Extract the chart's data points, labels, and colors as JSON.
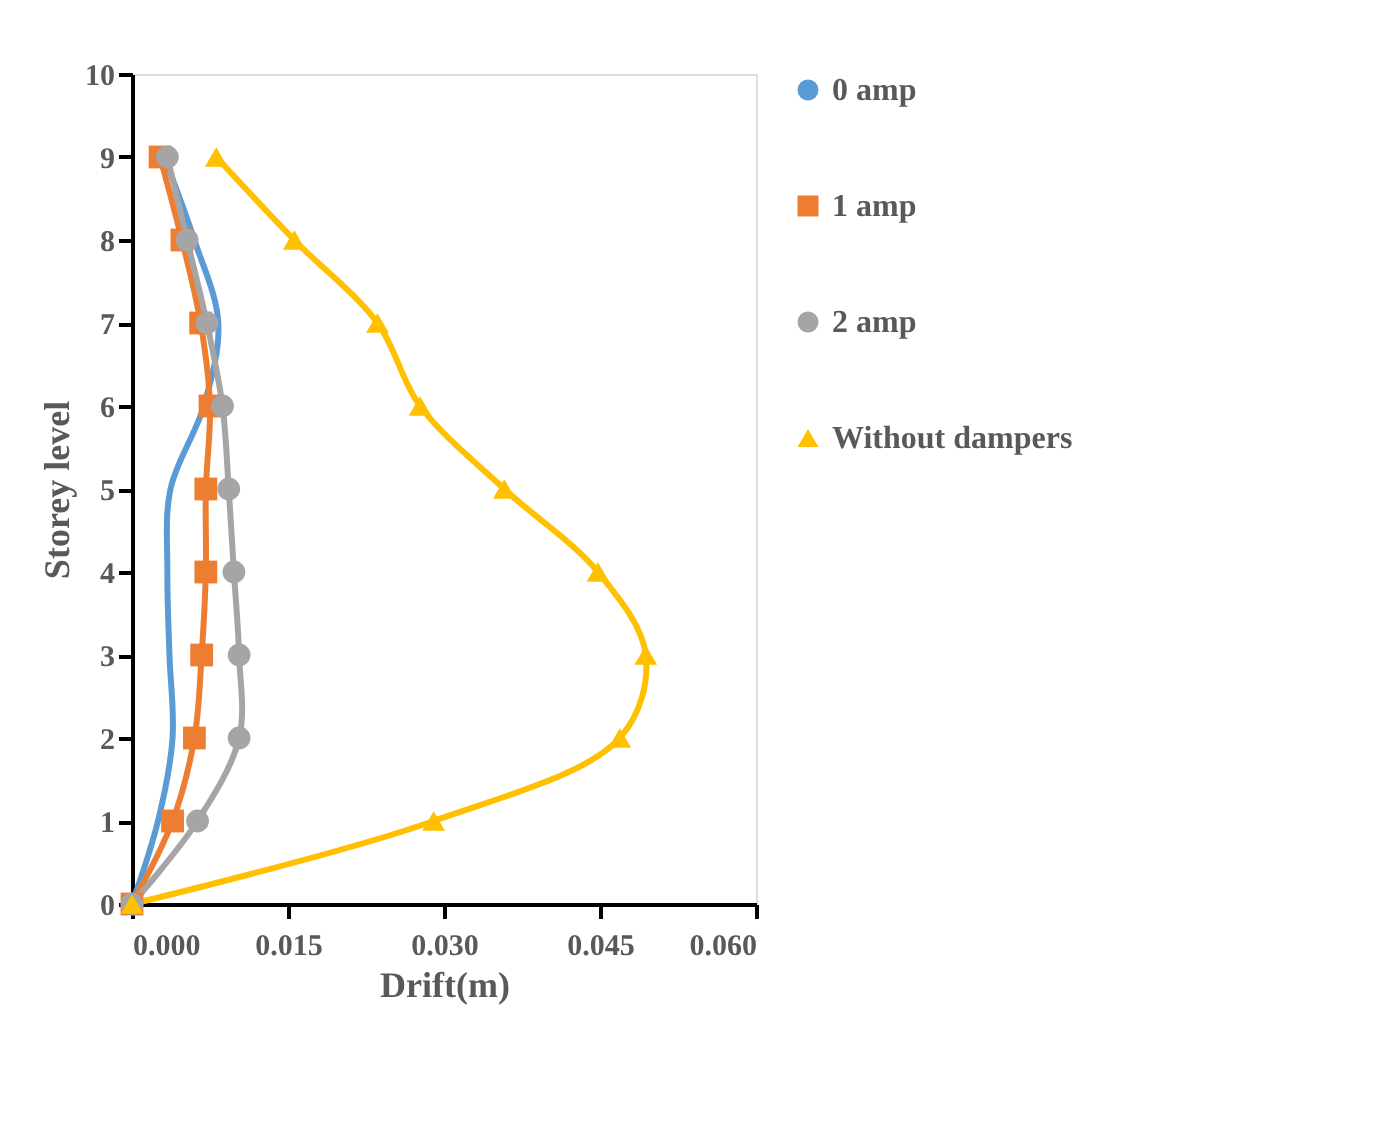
{
  "chart_data": {
    "type": "line",
    "xlabel": "Drift(m)",
    "ylabel": "Storey level",
    "xlim": [
      0,
      0.06
    ],
    "xticks": [
      {
        "value": 0,
        "label": "0.000"
      },
      {
        "value": 0.015,
        "label": "0.015"
      },
      {
        "value": 0.03,
        "label": "0.030"
      },
      {
        "value": 0.045,
        "label": "0.045"
      },
      {
        "value": 0.06,
        "label": "0.060"
      }
    ],
    "ylim": [
      0,
      10
    ],
    "yticks": [
      0,
      1,
      2,
      3,
      4,
      5,
      6,
      7,
      8,
      9,
      10
    ],
    "grid": false,
    "legend": "right",
    "series": [
      {
        "name": "0 amp",
        "color": "#5b9bd5",
        "marker": "none",
        "x": [
          0,
          0.0025,
          0.0039,
          0.0036,
          0.0034,
          0.0037,
          0.0069,
          0.0083,
          0.006,
          0.0031
        ],
        "values": [
          0,
          1,
          2,
          3,
          4,
          5,
          6,
          7,
          8,
          9
        ]
      },
      {
        "name": "1 amp",
        "color": "#ed7d31",
        "marker": "square",
        "x": [
          0,
          0.0039,
          0.006,
          0.0067,
          0.0071,
          0.0071,
          0.0075,
          0.0066,
          0.0048,
          0.0027
        ],
        "values": [
          0,
          1,
          2,
          3,
          4,
          5,
          6,
          7,
          8,
          9
        ]
      },
      {
        "name": "2 amp",
        "color": "#a5a5a5",
        "marker": "circle",
        "x": [
          0,
          0.0063,
          0.0103,
          0.0103,
          0.0098,
          0.0093,
          0.0087,
          0.0072,
          0.0053,
          0.0034
        ],
        "values": [
          0,
          1,
          2,
          3,
          4,
          5,
          6,
          7,
          8,
          9
        ]
      },
      {
        "name": "Without dampers",
        "color": "#ffc000",
        "marker": "triangle",
        "x": [
          0,
          0.029,
          0.0469,
          0.0494,
          0.0448,
          0.0358,
          0.0277,
          0.0236,
          0.0156,
          0.0081
        ],
        "values": [
          0,
          1,
          2,
          3,
          4,
          5,
          6,
          7,
          8,
          9
        ]
      }
    ]
  }
}
